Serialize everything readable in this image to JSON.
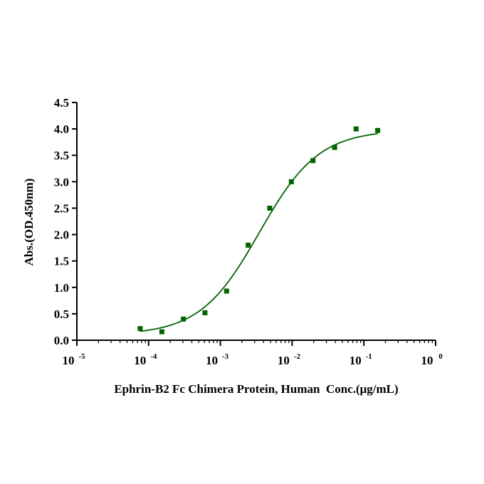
{
  "chart_data": {
    "type": "scatter",
    "title": "",
    "xlabel": "Ephrin-B2 Fc Chimera Protein, Human  Conc.(μg/mL)",
    "ylabel": "Abs.(OD.450nm)",
    "xscale": "log",
    "xlim": [
      1e-05,
      1
    ],
    "ylim": [
      0,
      4.5
    ],
    "x_ticks": [
      {
        "value": 1e-05,
        "base": "10",
        "exp": "-5"
      },
      {
        "value": 0.0001,
        "base": "10",
        "exp": "-4"
      },
      {
        "value": 0.001,
        "base": "10",
        "exp": "-3"
      },
      {
        "value": 0.01,
        "base": "10",
        "exp": "-2"
      },
      {
        "value": 0.1,
        "base": "10",
        "exp": "-1"
      },
      {
        "value": 1,
        "base": "10",
        "exp": "0"
      }
    ],
    "y_ticks": [
      "0.0",
      "0.5",
      "1.0",
      "1.5",
      "2.0",
      "2.5",
      "3.0",
      "3.5",
      "4.0",
      "4.5"
    ],
    "grid": false,
    "series": [
      {
        "marker": "square",
        "color": "#006400",
        "x": [
          7.63e-05,
          0.000153,
          0.000305,
          0.00061,
          0.00122,
          0.00244,
          0.00488,
          0.00977,
          0.0195,
          0.0391,
          0.0781,
          0.156
        ],
        "y": [
          0.22,
          0.16,
          0.4,
          0.52,
          0.93,
          1.8,
          2.5,
          3.0,
          3.4,
          3.65,
          4.0,
          3.97
        ]
      }
    ],
    "fit_curve": {
      "model": "4PL",
      "color": "#006400",
      "bottom": 0.1,
      "top": 3.98,
      "ec50": 0.0035,
      "hill": 1.05
    }
  }
}
